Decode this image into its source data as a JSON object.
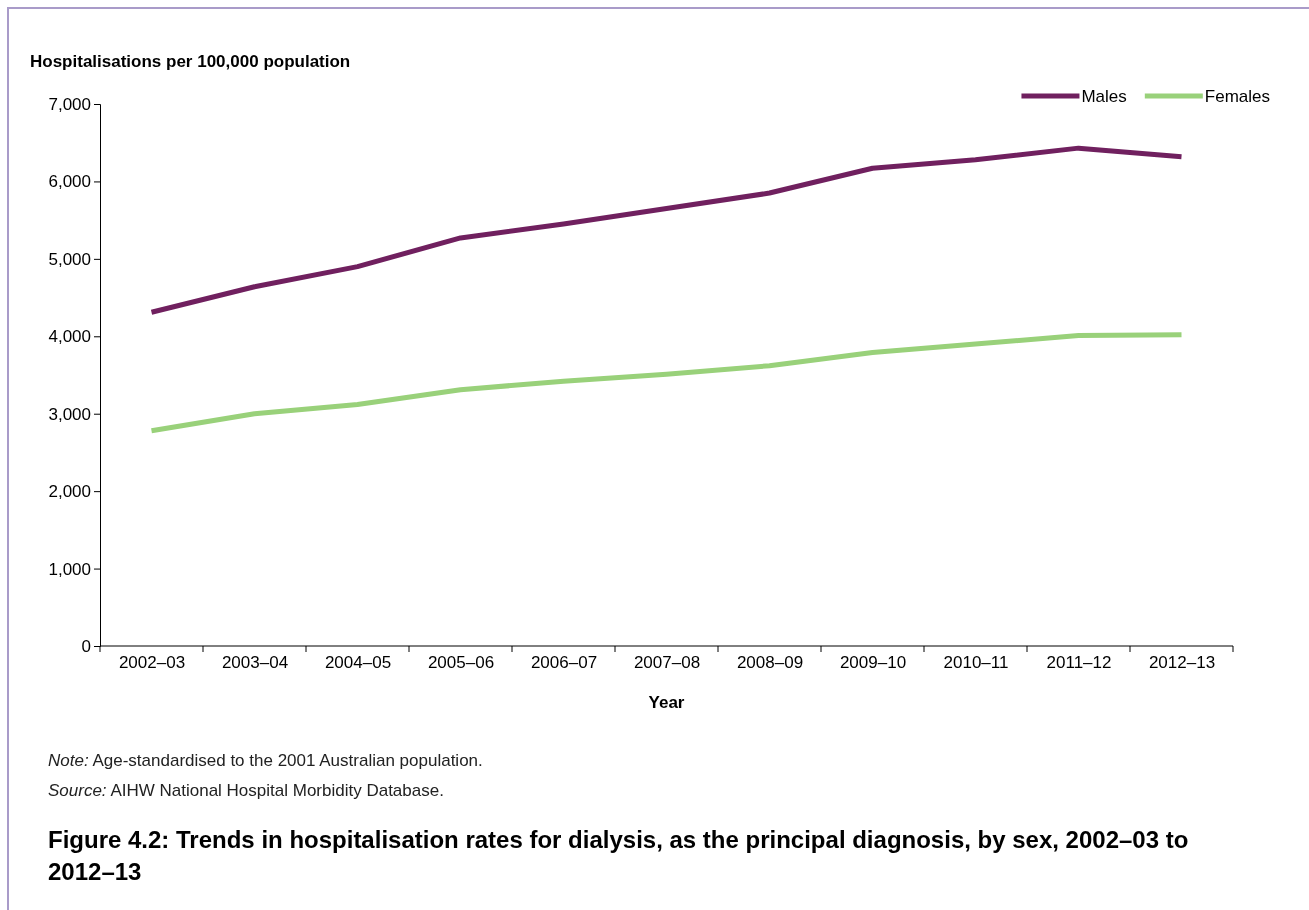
{
  "chart_data": {
    "type": "line",
    "title": "Figure 4.2: Trends in hospitalisation rates for dialysis, as the principal diagnosis, by sex, 2002–03 to 2012–13",
    "xlabel": "Year",
    "ylabel": "Hospitalisations per 100,000 population",
    "categories": [
      "2002–03",
      "2003–04",
      "2004–05",
      "2005–06",
      "2006–07",
      "2007–08",
      "2008–09",
      "2009–10",
      "2010–11",
      "2011–12",
      "2012–13"
    ],
    "series": [
      {
        "name": "Males",
        "color": "#70205f",
        "values": [
          4310,
          4640,
          4900,
          5270,
          5450,
          5650,
          5850,
          6170,
          6280,
          6430,
          6320
        ]
      },
      {
        "name": "Females",
        "color": "#99d17a",
        "values": [
          2780,
          3000,
          3120,
          3310,
          3420,
          3510,
          3620,
          3790,
          3900,
          4010,
          4020
        ]
      }
    ],
    "ylim": [
      0,
      7000
    ],
    "yticks": [
      {
        "value": 0,
        "label": "0"
      },
      {
        "value": 1000,
        "label": "1,000"
      },
      {
        "value": 2000,
        "label": "2,000"
      },
      {
        "value": 3000,
        "label": "3,000"
      },
      {
        "value": 4000,
        "label": "4,000"
      },
      {
        "value": 5000,
        "label": "5,000"
      },
      {
        "value": 6000,
        "label": "6,000"
      },
      {
        "value": 7000,
        "label": "7,000"
      }
    ],
    "grid": false,
    "legend": "top right",
    "marker": "none",
    "line_style": "solid",
    "annotations": [
      "Note: Age-standardised to the 2001 Australian population.",
      "Source: AIHW National Hospital Morbidity Database."
    ]
  }
}
